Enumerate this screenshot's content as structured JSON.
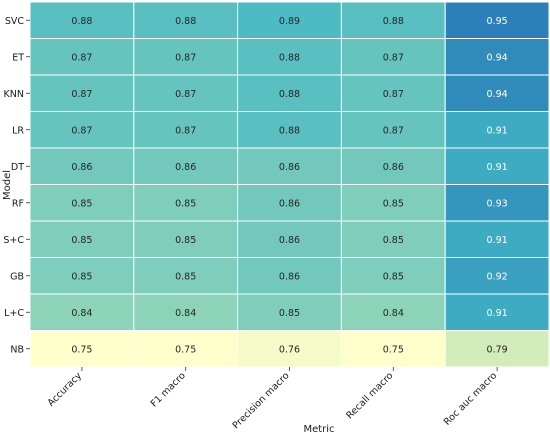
{
  "chart_data": {
    "type": "heatmap",
    "xlabel": "Metric",
    "ylabel": "Model",
    "columns": [
      "Accuracy",
      "F1 macro",
      "Precision macro",
      "Recall macro",
      "Roc auc macro"
    ],
    "rows": [
      "SVC",
      "ET",
      "KNN",
      "LR",
      "DT",
      "RF",
      "S+C",
      "GB",
      "L+C",
      "NB"
    ],
    "values": [
      [
        0.88,
        0.88,
        0.89,
        0.88,
        0.95
      ],
      [
        0.87,
        0.87,
        0.88,
        0.87,
        0.94
      ],
      [
        0.87,
        0.87,
        0.88,
        0.87,
        0.94
      ],
      [
        0.87,
        0.87,
        0.88,
        0.87,
        0.91
      ],
      [
        0.86,
        0.86,
        0.86,
        0.86,
        0.91
      ],
      [
        0.85,
        0.85,
        0.86,
        0.85,
        0.93
      ],
      [
        0.85,
        0.85,
        0.86,
        0.85,
        0.91
      ],
      [
        0.85,
        0.85,
        0.86,
        0.85,
        0.92
      ],
      [
        0.84,
        0.84,
        0.85,
        0.84,
        0.91
      ],
      [
        0.75,
        0.75,
        0.76,
        0.75,
        0.79
      ]
    ],
    "colormap": "YlGnBu",
    "value_range": [
      0.75,
      0.95
    ],
    "annotations": true,
    "grid": false,
    "cell_border_color": "#ffffff"
  }
}
